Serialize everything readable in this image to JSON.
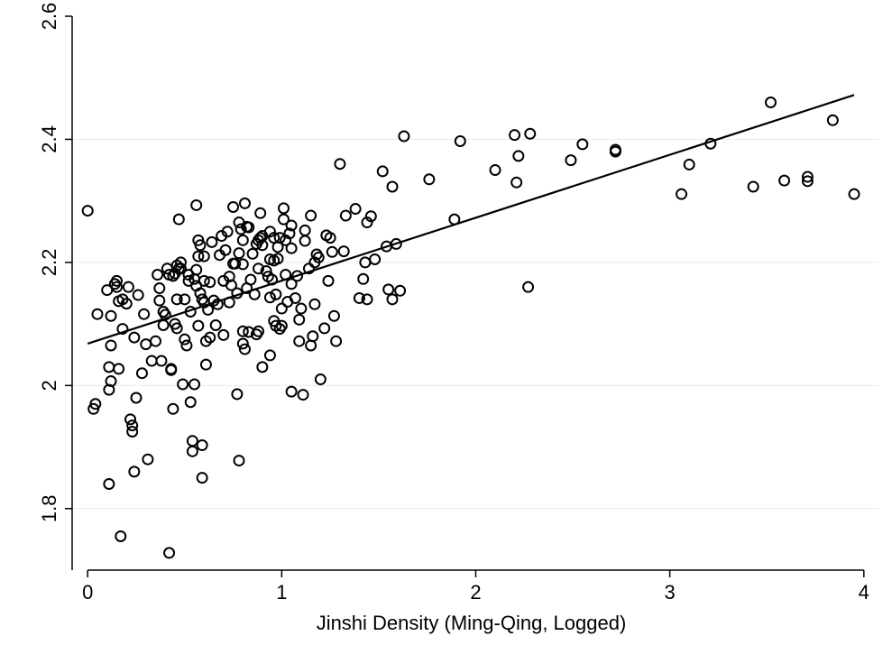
{
  "chart_data": {
    "type": "scatter",
    "title": "",
    "xlabel": "Jinshi Density (Ming-Qing, Logged)",
    "ylabel": "",
    "xlim": [
      -0.08,
      4.08
    ],
    "ylim": [
      1.7,
      2.6
    ],
    "xticks": [
      0,
      1,
      2,
      3,
      4
    ],
    "yticks": [
      1.8,
      2,
      2.2,
      2.4,
      2.6
    ],
    "xtick_labels": [
      "0",
      "1",
      "2",
      "3",
      "4"
    ],
    "ytick_labels": [
      "1.8",
      "2",
      "2.2",
      "2.4",
      "2.6"
    ],
    "grid": "horizontal",
    "fit_line": {
      "x": [
        0,
        3.95
      ],
      "y": [
        2.068,
        2.472
      ]
    },
    "points": [
      [
        0.0,
        2.284
      ],
      [
        0.03,
        1.962
      ],
      [
        0.04,
        1.97
      ],
      [
        0.05,
        2.116
      ],
      [
        0.1,
        2.155
      ],
      [
        0.11,
        2.03
      ],
      [
        0.11,
        1.993
      ],
      [
        0.11,
        1.84
      ],
      [
        0.12,
        2.113
      ],
      [
        0.12,
        2.065
      ],
      [
        0.12,
        2.007
      ],
      [
        0.14,
        2.165
      ],
      [
        0.15,
        2.16
      ],
      [
        0.15,
        2.17
      ],
      [
        0.16,
        2.027
      ],
      [
        0.16,
        2.137
      ],
      [
        0.17,
        1.755
      ],
      [
        0.18,
        2.14
      ],
      [
        0.18,
        2.092
      ],
      [
        0.2,
        2.133
      ],
      [
        0.21,
        2.16
      ],
      [
        0.22,
        1.945
      ],
      [
        0.23,
        1.925
      ],
      [
        0.23,
        1.935
      ],
      [
        0.24,
        2.078
      ],
      [
        0.24,
        1.86
      ],
      [
        0.25,
        1.98
      ],
      [
        0.26,
        2.147
      ],
      [
        0.28,
        2.02
      ],
      [
        0.29,
        2.116
      ],
      [
        0.3,
        2.067
      ],
      [
        0.31,
        1.88
      ],
      [
        0.33,
        2.04
      ],
      [
        0.35,
        2.072
      ],
      [
        0.36,
        2.18
      ],
      [
        0.37,
        2.138
      ],
      [
        0.37,
        2.158
      ],
      [
        0.38,
        2.04
      ],
      [
        0.39,
        2.098
      ],
      [
        0.39,
        2.12
      ],
      [
        0.4,
        2.115
      ],
      [
        0.41,
        2.19
      ],
      [
        0.42,
        2.18
      ],
      [
        0.42,
        1.728
      ],
      [
        0.43,
        2.027
      ],
      [
        0.43,
        2.025
      ],
      [
        0.44,
        2.178
      ],
      [
        0.44,
        1.962
      ],
      [
        0.45,
        2.182
      ],
      [
        0.45,
        2.1
      ],
      [
        0.46,
        2.195
      ],
      [
        0.46,
        2.14
      ],
      [
        0.46,
        2.093
      ],
      [
        0.47,
        2.27
      ],
      [
        0.47,
        2.19
      ],
      [
        0.48,
        2.2
      ],
      [
        0.48,
        2.19
      ],
      [
        0.49,
        2.002
      ],
      [
        0.5,
        2.075
      ],
      [
        0.5,
        2.14
      ],
      [
        0.51,
        2.065
      ],
      [
        0.52,
        2.18
      ],
      [
        0.52,
        2.17
      ],
      [
        0.53,
        2.12
      ],
      [
        0.53,
        1.973
      ],
      [
        0.54,
        1.91
      ],
      [
        0.54,
        1.893
      ],
      [
        0.55,
        2.173
      ],
      [
        0.55,
        2.002
      ],
      [
        0.56,
        2.293
      ],
      [
        0.56,
        2.188
      ],
      [
        0.56,
        2.162
      ],
      [
        0.57,
        2.236
      ],
      [
        0.57,
        2.21
      ],
      [
        0.57,
        2.097
      ],
      [
        0.58,
        2.228
      ],
      [
        0.58,
        2.15
      ],
      [
        0.59,
        2.14
      ],
      [
        0.59,
        1.903
      ],
      [
        0.59,
        1.85
      ],
      [
        0.6,
        2.21
      ],
      [
        0.6,
        2.17
      ],
      [
        0.6,
        2.135
      ],
      [
        0.61,
        2.072
      ],
      [
        0.61,
        2.034
      ],
      [
        0.62,
        2.123
      ],
      [
        0.63,
        2.168
      ],
      [
        0.63,
        2.078
      ],
      [
        0.64,
        2.233
      ],
      [
        0.65,
        2.138
      ],
      [
        0.66,
        2.098
      ],
      [
        0.67,
        2.132
      ],
      [
        0.68,
        2.212
      ],
      [
        0.69,
        2.243
      ],
      [
        0.7,
        2.17
      ],
      [
        0.7,
        2.082
      ],
      [
        0.71,
        2.22
      ],
      [
        0.72,
        2.25
      ],
      [
        0.73,
        2.177
      ],
      [
        0.73,
        2.135
      ],
      [
        0.74,
        2.163
      ],
      [
        0.75,
        2.29
      ],
      [
        0.75,
        2.198
      ],
      [
        0.76,
        2.198
      ],
      [
        0.77,
        2.15
      ],
      [
        0.77,
        1.986
      ],
      [
        0.78,
        2.265
      ],
      [
        0.78,
        2.215
      ],
      [
        0.78,
        1.878
      ],
      [
        0.79,
        2.254
      ],
      [
        0.8,
        2.236
      ],
      [
        0.8,
        2.197
      ],
      [
        0.8,
        2.088
      ],
      [
        0.8,
        2.068
      ],
      [
        0.81,
        2.296
      ],
      [
        0.81,
        2.059
      ],
      [
        0.82,
        2.258
      ],
      [
        0.82,
        2.158
      ],
      [
        0.83,
        2.257
      ],
      [
        0.83,
        2.087
      ],
      [
        0.84,
        2.172
      ],
      [
        0.85,
        2.214
      ],
      [
        0.86,
        2.148
      ],
      [
        0.87,
        2.23
      ],
      [
        0.87,
        2.083
      ],
      [
        0.88,
        2.236
      ],
      [
        0.88,
        2.19
      ],
      [
        0.88,
        2.088
      ],
      [
        0.89,
        2.28
      ],
      [
        0.89,
        2.24
      ],
      [
        0.9,
        2.243
      ],
      [
        0.9,
        2.228
      ],
      [
        0.9,
        2.03
      ],
      [
        0.92,
        2.186
      ],
      [
        0.93,
        2.177
      ],
      [
        0.94,
        2.25
      ],
      [
        0.94,
        2.205
      ],
      [
        0.94,
        2.143
      ],
      [
        0.94,
        2.049
      ],
      [
        0.95,
        2.172
      ],
      [
        0.96,
        2.24
      ],
      [
        0.96,
        2.203
      ],
      [
        0.96,
        2.105
      ],
      [
        0.97,
        2.148
      ],
      [
        0.97,
        2.097
      ],
      [
        0.98,
        2.225
      ],
      [
        0.98,
        2.206
      ],
      [
        0.99,
        2.24
      ],
      [
        0.99,
        2.092
      ],
      [
        1.0,
        2.125
      ],
      [
        1.0,
        2.097
      ],
      [
        1.01,
        2.288
      ],
      [
        1.01,
        2.27
      ],
      [
        1.02,
        2.236
      ],
      [
        1.02,
        2.18
      ],
      [
        1.03,
        2.136
      ],
      [
        1.04,
        2.247
      ],
      [
        1.05,
        2.26
      ],
      [
        1.05,
        2.223
      ],
      [
        1.05,
        2.165
      ],
      [
        1.05,
        1.99
      ],
      [
        1.07,
        2.142
      ],
      [
        1.08,
        2.178
      ],
      [
        1.09,
        2.072
      ],
      [
        1.09,
        2.107
      ],
      [
        1.1,
        2.125
      ],
      [
        1.11,
        1.985
      ],
      [
        1.12,
        2.252
      ],
      [
        1.12,
        2.235
      ],
      [
        1.14,
        2.19
      ],
      [
        1.15,
        2.276
      ],
      [
        1.15,
        2.065
      ],
      [
        1.16,
        2.08
      ],
      [
        1.17,
        2.2
      ],
      [
        1.17,
        2.132
      ],
      [
        1.18,
        2.213
      ],
      [
        1.19,
        2.208
      ],
      [
        1.2,
        2.01
      ],
      [
        1.22,
        2.093
      ],
      [
        1.23,
        2.244
      ],
      [
        1.24,
        2.17
      ],
      [
        1.25,
        2.24
      ],
      [
        1.26,
        2.217
      ],
      [
        1.27,
        2.113
      ],
      [
        1.28,
        2.072
      ],
      [
        1.3,
        2.36
      ],
      [
        1.32,
        2.218
      ],
      [
        1.33,
        2.276
      ],
      [
        1.38,
        2.287
      ],
      [
        1.4,
        2.142
      ],
      [
        1.42,
        2.173
      ],
      [
        1.43,
        2.2
      ],
      [
        1.44,
        2.265
      ],
      [
        1.44,
        2.14
      ],
      [
        1.46,
        2.275
      ],
      [
        1.48,
        2.205
      ],
      [
        1.52,
        2.348
      ],
      [
        1.54,
        2.226
      ],
      [
        1.55,
        2.156
      ],
      [
        1.57,
        2.323
      ],
      [
        1.57,
        2.14
      ],
      [
        1.59,
        2.23
      ],
      [
        1.61,
        2.154
      ],
      [
        1.63,
        2.405
      ],
      [
        1.76,
        2.335
      ],
      [
        1.89,
        2.27
      ],
      [
        1.92,
        2.397
      ],
      [
        2.1,
        2.35
      ],
      [
        2.2,
        2.407
      ],
      [
        2.21,
        2.33
      ],
      [
        2.22,
        2.373
      ],
      [
        2.27,
        2.16
      ],
      [
        2.28,
        2.409
      ],
      [
        2.49,
        2.366
      ],
      [
        2.55,
        2.392
      ],
      [
        2.72,
        2.383
      ],
      [
        2.72,
        2.38
      ],
      [
        3.06,
        2.311
      ],
      [
        3.1,
        2.359
      ],
      [
        3.21,
        2.393
      ],
      [
        3.43,
        2.323
      ],
      [
        3.52,
        2.46
      ],
      [
        3.59,
        2.333
      ],
      [
        3.71,
        2.332
      ],
      [
        3.71,
        2.339
      ],
      [
        3.84,
        2.431
      ],
      [
        3.95,
        2.311
      ]
    ]
  }
}
